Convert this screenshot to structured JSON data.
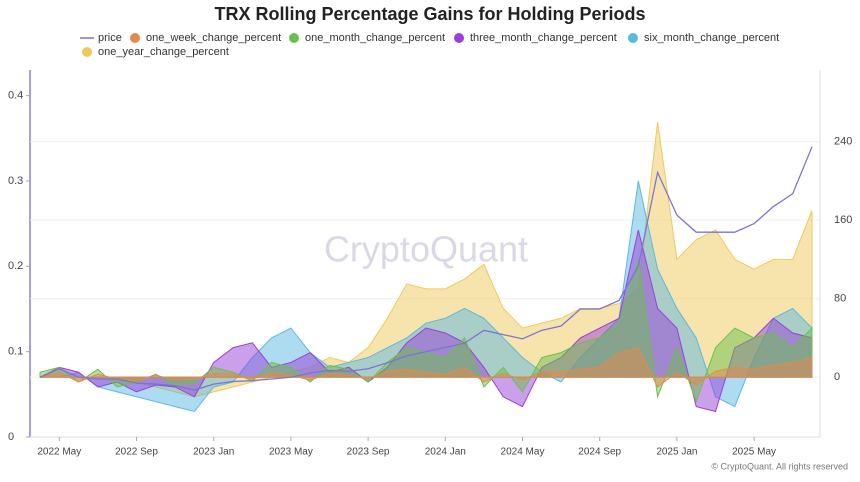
{
  "chart_data": {
    "type": "area",
    "title": "TRX Rolling Percentage Gains for Holding Periods",
    "watermark": "CryptoQuant",
    "credit": "© CryptoQuant. All rights reserved",
    "categories": [
      null,
      "2022 May",
      null,
      null,
      null,
      "2022 Sep",
      null,
      null,
      null,
      "2023 Jan",
      null,
      null,
      null,
      "2023 May",
      null,
      null,
      null,
      "2023 Sep",
      null,
      null,
      null,
      "2024 Jan",
      null,
      null,
      null,
      "2024 May",
      null,
      null,
      null,
      "2024 Sep",
      null,
      null,
      null,
      "2025 Jan",
      null,
      null,
      null,
      "2025 May",
      null,
      null,
      null
    ],
    "ylim": [
      0,
      0.43
    ],
    "yticks": [
      0,
      0.1,
      0.2,
      0.3,
      0.4
    ],
    "y2lim": [
      -61,
      313
    ],
    "y2ticks": [
      0,
      80,
      160,
      240
    ],
    "grid": true,
    "series": [
      {
        "name": "price",
        "color": "#7d72d8",
        "axis": "y",
        "values": [
          0.07,
          0.08,
          0.07,
          0.068,
          0.068,
          0.063,
          0.062,
          0.06,
          0.055,
          0.062,
          0.065,
          0.066,
          0.068,
          0.07,
          0.075,
          0.078,
          0.077,
          0.08,
          0.087,
          0.095,
          0.1,
          0.105,
          0.11,
          0.125,
          0.12,
          0.115,
          0.125,
          0.13,
          0.15,
          0.15,
          0.16,
          0.2,
          0.31,
          0.26,
          0.24,
          0.24,
          0.24,
          0.25,
          0.27,
          0.285,
          0.34
        ]
      },
      {
        "name": "one_week_change_percent",
        "color": "#e38a4c",
        "axis": "y2",
        "values": [
          0,
          5,
          -5,
          3,
          -2,
          -4,
          2,
          -3,
          -2,
          4,
          3,
          -2,
          5,
          2,
          -3,
          4,
          2,
          -2,
          6,
          8,
          5,
          3,
          10,
          -5,
          4,
          -3,
          6,
          5,
          8,
          10,
          25,
          30,
          -10,
          5,
          -8,
          6,
          10,
          8,
          12,
          15,
          20
        ]
      },
      {
        "name": "one_month_change_percent",
        "color": "#6cbf4c",
        "axis": "y2",
        "values": [
          5,
          10,
          -5,
          8,
          -10,
          -5,
          3,
          -8,
          -6,
          10,
          5,
          -4,
          15,
          10,
          -5,
          12,
          8,
          -5,
          15,
          30,
          25,
          20,
          40,
          -10,
          10,
          -15,
          20,
          25,
          35,
          40,
          55,
          120,
          -20,
          30,
          -25,
          30,
          50,
          40,
          45,
          30,
          50
        ]
      },
      {
        "name": "three_month_change_percent",
        "color": "#9a3fd8",
        "axis": "y2",
        "values": [
          0,
          10,
          5,
          -10,
          -5,
          -15,
          -8,
          -10,
          -20,
          15,
          30,
          35,
          10,
          15,
          25,
          5,
          10,
          -5,
          10,
          35,
          50,
          45,
          35,
          10,
          -20,
          -30,
          10,
          20,
          40,
          50,
          60,
          150,
          70,
          50,
          -30,
          -35,
          30,
          40,
          60,
          45,
          40
        ]
      },
      {
        "name": "six_month_change_percent",
        "color": "#5cb8e2",
        "axis": "y2",
        "values": [
          0,
          0,
          5,
          -10,
          -15,
          -20,
          -25,
          -30,
          -35,
          -10,
          -5,
          20,
          40,
          50,
          25,
          10,
          15,
          20,
          30,
          40,
          55,
          60,
          70,
          60,
          40,
          20,
          5,
          -5,
          20,
          40,
          60,
          200,
          110,
          70,
          40,
          -20,
          -30,
          20,
          60,
          70,
          50
        ]
      },
      {
        "name": "one_year_change_percent",
        "color": "#efc95b",
        "axis": "y2",
        "values": [
          0,
          0,
          0,
          0,
          0,
          -5,
          -10,
          -15,
          -20,
          -15,
          -10,
          -5,
          0,
          5,
          10,
          20,
          15,
          30,
          60,
          95,
          90,
          90,
          100,
          115,
          70,
          50,
          55,
          60,
          70,
          70,
          75,
          90,
          260,
          120,
          140,
          150,
          120,
          110,
          120,
          120,
          170
        ]
      }
    ]
  }
}
